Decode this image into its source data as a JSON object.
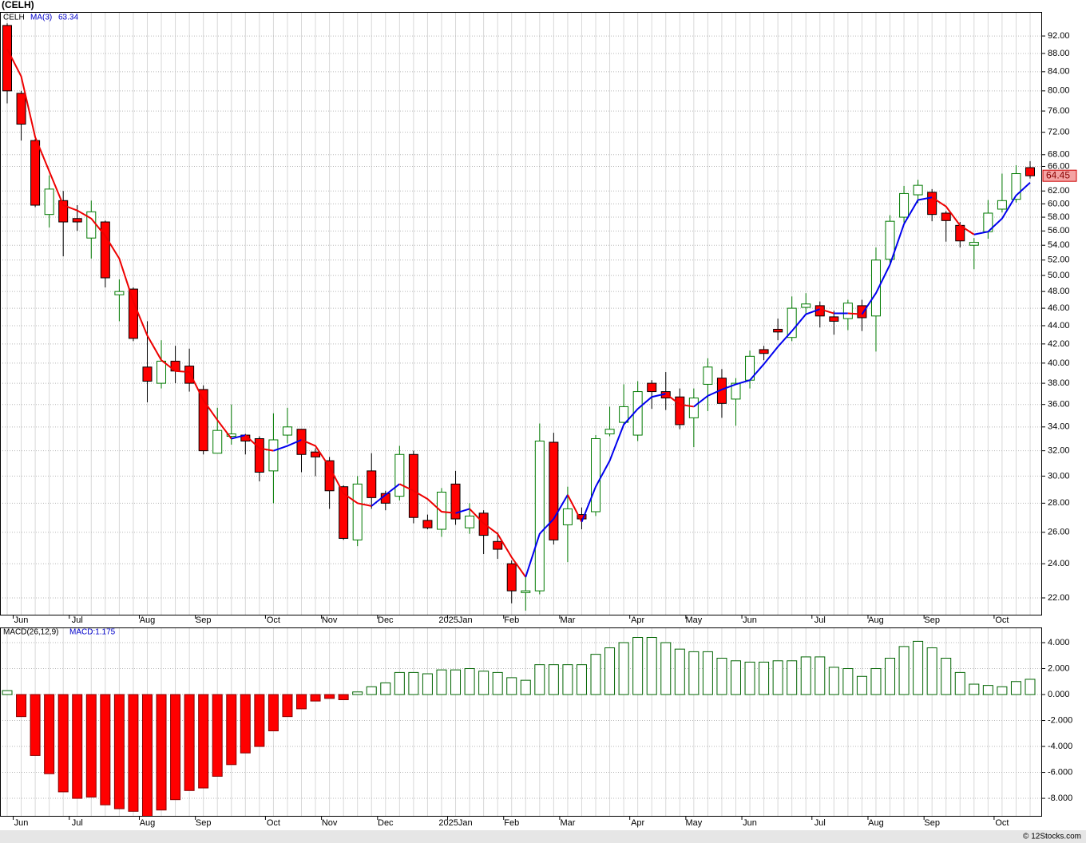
{
  "chart_data": [
    {
      "type": "candlestick",
      "title": "(CELH)",
      "name": "CELH",
      "log_scale": true,
      "grid": true,
      "up_color": "#007a00",
      "down_color": "#ff0000",
      "categories": [
        null,
        "Jun",
        null,
        null,
        null,
        "Jul",
        null,
        null,
        null,
        null,
        "Aug",
        null,
        null,
        null,
        "Sep",
        null,
        null,
        null,
        null,
        "Oct",
        null,
        null,
        null,
        "Nov",
        null,
        null,
        null,
        "Dec",
        null,
        null,
        null,
        null,
        "2025Jan",
        null,
        null,
        null,
        "Feb",
        null,
        null,
        null,
        "Mar",
        null,
        null,
        null,
        null,
        "Apr",
        null,
        null,
        null,
        "May",
        null,
        null,
        null,
        "Jun",
        null,
        null,
        null,
        null,
        "Jul",
        null,
        null,
        null,
        "Aug",
        null,
        null,
        null,
        "Sep",
        null,
        null,
        null,
        null,
        "Oct",
        null,
        null
      ],
      "open": [
        94.5,
        79.5,
        70.5,
        58.4,
        60.5,
        57.8,
        55.0,
        57.3,
        47.6,
        48.3,
        39.6,
        38.0,
        40.2,
        39.7,
        37.4,
        31.8,
        33.2,
        33.3,
        33.0,
        30.4,
        33.3,
        33.8,
        31.9,
        31.2,
        29.2,
        25.5,
        30.4,
        28.7,
        28.5,
        31.7,
        26.8,
        26.2,
        29.4,
        26.3,
        27.3,
        25.4,
        24.0,
        22.3,
        22.4,
        32.7,
        26.5,
        27.2,
        27.4,
        33.4,
        34.4,
        33.3,
        38.0,
        37.2,
        36.7,
        34.8,
        37.9,
        38.5,
        36.5,
        38.3,
        41.4,
        43.6,
        42.7,
        46.1,
        46.3,
        45.0,
        44.8,
        46.3,
        45.1,
        52.1,
        58.0,
        61.4,
        61.8,
        58.6,
        56.8,
        54.0,
        55.9,
        59.2,
        60.7,
        65.8
      ],
      "high": [
        95.0,
        80.0,
        70.8,
        64.5,
        62.0,
        59.8,
        60.5,
        57.5,
        49.5,
        48.5,
        44.5,
        42.4,
        41.8,
        41.5,
        37.8,
        35.7,
        36.0,
        33.4,
        33.2,
        35.2,
        35.7,
        33.8,
        32.2,
        31.5,
        29.3,
        30.0,
        31.8,
        28.9,
        32.4,
        32.0,
        27.2,
        29.1,
        30.4,
        28.0,
        27.5,
        26.0,
        24.2,
        23.3,
        34.3,
        33.5,
        29.2,
        27.7,
        33.3,
        35.8,
        37.9,
        38.2,
        38.3,
        39.1,
        37.5,
        37.5,
        40.5,
        39.4,
        38.5,
        41.3,
        41.8,
        44.8,
        47.4,
        47.8,
        46.8,
        45.7,
        47.0,
        47.0,
        53.7,
        58.3,
        62.8,
        63.8,
        62.3,
        58.9,
        57.3,
        55.0,
        60.6,
        64.8,
        66.2,
        66.9
      ],
      "low": [
        77.5,
        70.5,
        59.5,
        56.5,
        52.5,
        56.0,
        52.2,
        48.5,
        44.5,
        42.3,
        36.2,
        37.5,
        38.0,
        37.2,
        31.7,
        31.8,
        32.5,
        31.7,
        29.6,
        28.0,
        32.6,
        30.3,
        30.0,
        27.6,
        25.5,
        25.1,
        27.6,
        27.5,
        28.2,
        26.6,
        26.2,
        25.7,
        26.5,
        25.9,
        24.6,
        24.3,
        21.7,
        21.3,
        22.2,
        25.2,
        24.1,
        26.2,
        27.1,
        33.2,
        34.1,
        32.8,
        35.6,
        35.5,
        33.8,
        32.3,
        35.4,
        34.8,
        34.1,
        37.5,
        40.3,
        42.4,
        42.3,
        45.4,
        43.8,
        43.0,
        43.5,
        43.4,
        41.2,
        51.4,
        57.2,
        60.1,
        57.4,
        54.5,
        53.7,
        50.8,
        54.9,
        58.7,
        60.2,
        64.0
      ],
      "close": [
        80.0,
        73.5,
        59.8,
        62.3,
        57.3,
        57.3,
        58.8,
        49.7,
        48.0,
        42.6,
        38.2,
        40.2,
        39.2,
        38.0,
        32.0,
        33.7,
        33.4,
        32.8,
        30.3,
        32.9,
        34.0,
        31.7,
        31.5,
        28.9,
        25.6,
        29.4,
        28.4,
        28.0,
        31.7,
        27.0,
        26.3,
        28.8,
        26.9,
        27.1,
        25.8,
        24.9,
        22.4,
        22.4,
        32.8,
        25.5,
        27.6,
        26.9,
        33.0,
        33.8,
        35.8,
        37.2,
        37.2,
        36.6,
        34.2,
        36.6,
        39.6,
        36.1,
        38.0,
        40.7,
        41.0,
        43.3,
        46.0,
        46.5,
        45.1,
        44.5,
        46.6,
        44.9,
        52.0,
        57.4,
        61.6,
        62.9,
        58.4,
        57.5,
        54.6,
        54.4,
        58.6,
        60.5,
        64.8,
        64.45
      ],
      "ma": {
        "name": "MA(3)",
        "up_color": "#0000ee",
        "down_color": "#ee0000",
        "values": [
          89,
          83,
          71.1,
          65.2,
          59.8,
          59.0,
          57.8,
          55.3,
          52.2,
          46.8,
          42.9,
          40.3,
          39.2,
          39.1,
          36.4,
          34.6,
          33.0,
          33.3,
          32.2,
          32.0,
          32.4,
          32.9,
          32.4,
          30.7,
          28.7,
          28.0,
          27.8,
          28.6,
          29.4,
          28.9,
          28.3,
          27.4,
          27.3,
          27.6,
          26.6,
          25.9,
          24.4,
          23.2,
          25.9,
          26.9,
          28.6,
          26.7,
          29.2,
          31.2,
          34.2,
          35.6,
          36.7,
          37.0,
          36.0,
          35.8,
          36.8,
          37.4,
          37.9,
          38.3,
          39.9,
          41.7,
          43.4,
          45.3,
          45.9,
          45.4,
          45.4,
          45.3,
          47.8,
          51.4,
          57.0,
          60.6,
          61.0,
          59.6,
          56.8,
          55.5,
          55.9,
          57.8,
          61.3,
          63.34
        ]
      },
      "ylim": [
        21.08,
        97.8
      ],
      "yticks": [
        {
          "value": 92,
          "label": "92.00"
        },
        {
          "value": 88,
          "label": "88.00"
        },
        {
          "value": 84,
          "label": "84.00"
        },
        {
          "value": 80,
          "label": "80.00"
        },
        {
          "value": 76,
          "label": "76.00"
        },
        {
          "value": 72,
          "label": "72.00"
        },
        {
          "value": 68,
          "label": "68.00"
        },
        {
          "value": 66,
          "label": "66.00"
        },
        {
          "value": 62,
          "label": "62.00"
        },
        {
          "value": 60,
          "label": "60.00"
        },
        {
          "value": 58,
          "label": "58.00"
        },
        {
          "value": 56,
          "label": "56.00"
        },
        {
          "value": 54,
          "label": "54.00"
        },
        {
          "value": 52,
          "label": "52.00"
        },
        {
          "value": 50,
          "label": "50.00"
        },
        {
          "value": 48,
          "label": "48.00"
        },
        {
          "value": 46,
          "label": "46.00"
        },
        {
          "value": 44,
          "label": "44.00"
        },
        {
          "value": 42,
          "label": "42.00"
        },
        {
          "value": 40,
          "label": "40.00"
        },
        {
          "value": 38,
          "label": "38.00"
        },
        {
          "value": 36,
          "label": "36.00"
        },
        {
          "value": 34,
          "label": "34.00"
        },
        {
          "value": 32,
          "label": "32.00"
        },
        {
          "value": 30,
          "label": "30.00"
        },
        {
          "value": 28,
          "label": "28.00"
        },
        {
          "value": 26,
          "label": "26.00"
        },
        {
          "value": 24,
          "label": "24.00"
        },
        {
          "value": 22,
          "label": "22.00"
        }
      ]
    },
    {
      "type": "bar",
      "title": "MACD(26,12,9)",
      "legend_label": "MACD:1.175",
      "grid": true,
      "pos_color": "#006400",
      "neg_color": "#ff0000",
      "values": [
        0.3,
        -1.7,
        -4.7,
        -6.1,
        -7.5,
        -8.0,
        -7.9,
        -8.5,
        -8.8,
        -9.0,
        -9.5,
        -8.9,
        -8.1,
        -7.4,
        -7.2,
        -6.3,
        -5.4,
        -4.5,
        -4.0,
        -2.8,
        -1.7,
        -1.1,
        -0.5,
        -0.3,
        -0.4,
        0.2,
        0.6,
        0.9,
        1.7,
        1.7,
        1.6,
        1.9,
        1.9,
        2.0,
        1.8,
        1.7,
        1.3,
        1.1,
        2.3,
        2.3,
        2.3,
        2.3,
        3.1,
        3.6,
        4.0,
        4.4,
        4.4,
        4.0,
        3.5,
        3.3,
        3.3,
        2.8,
        2.6,
        2.5,
        2.5,
        2.6,
        2.6,
        2.9,
        2.9,
        2.1,
        2.0,
        1.4,
        2.0,
        2.8,
        3.7,
        4.1,
        3.6,
        2.8,
        1.7,
        0.8,
        0.7,
        0.6,
        1.0,
        1.175
      ],
      "ylim": [
        -9.35,
        5.17
      ],
      "yticks": [
        {
          "value": 4,
          "label": "4.000"
        },
        {
          "value": 2,
          "label": "2.000"
        },
        {
          "value": 0,
          "label": "0.000"
        },
        {
          "value": -2,
          "label": "-2.000"
        },
        {
          "value": -4,
          "label": "-4.000"
        },
        {
          "value": -6,
          "label": "-6.000"
        },
        {
          "value": -8,
          "label": "-8.000"
        }
      ]
    }
  ],
  "footer": "© 12Stocks.com"
}
